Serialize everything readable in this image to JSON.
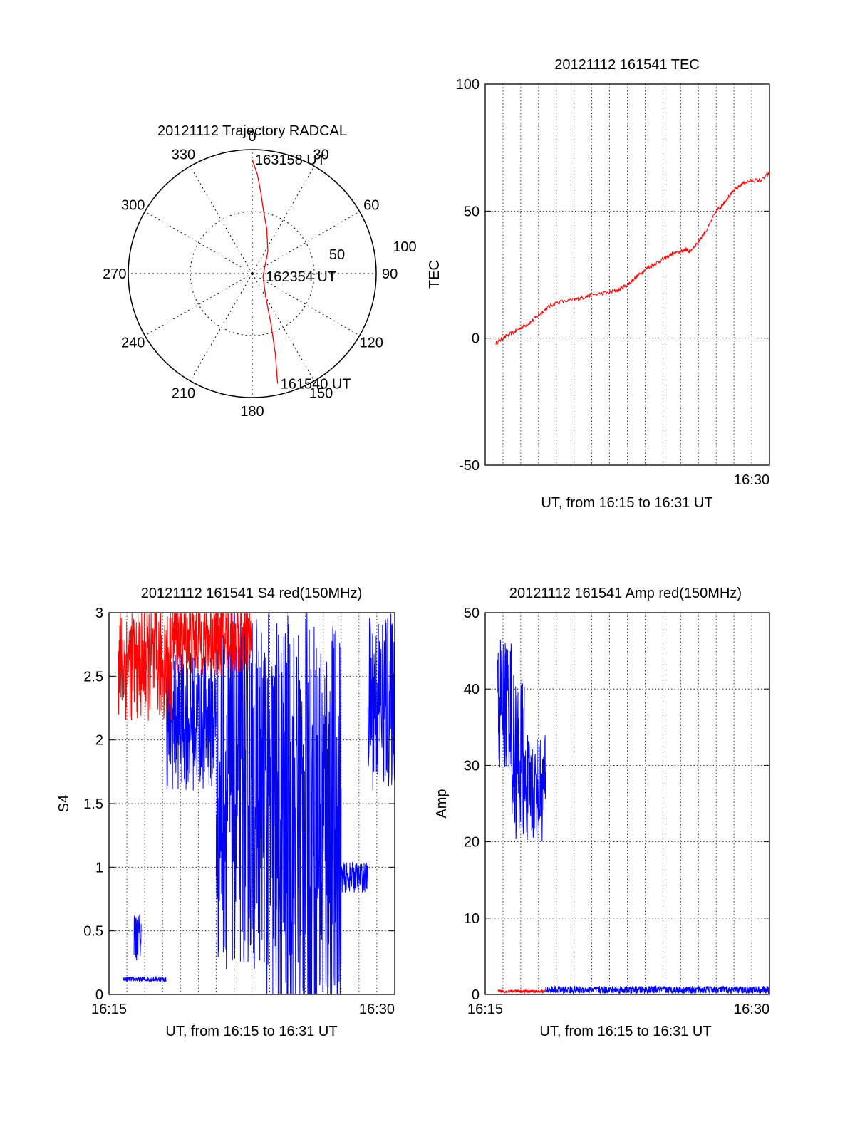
{
  "colors": {
    "red": "#ff0000",
    "blue": "#0000ff",
    "axis": "#000000"
  },
  "chart_data": [
    {
      "type": "polar",
      "title": "20121112 Trajectory RADCAL",
      "angle_labels": [
        "0",
        "30",
        "60",
        "90",
        "120",
        "150",
        "180",
        "210",
        "240",
        "270",
        "300",
        "330"
      ],
      "radius_max": 100,
      "radius_labels": [
        "50",
        "100"
      ],
      "annotations": [
        {
          "text": "163158 UT",
          "angle": 0,
          "radius": 92
        },
        {
          "text": "162354 UT",
          "angle": 105,
          "radius": 9
        },
        {
          "text": "161540 UT",
          "angle": 167,
          "radius": 91
        }
      ],
      "series": [
        {
          "color": "#ff0000",
          "points": [
            [
              0,
              92
            ],
            [
              3,
              80
            ],
            [
              6,
              66
            ],
            [
              10,
              52
            ],
            [
              18,
              38
            ],
            [
              35,
              22
            ],
            [
              105,
              9
            ],
            [
              150,
              22
            ],
            [
              160,
              45
            ],
            [
              164,
              68
            ],
            [
              167,
              91
            ]
          ]
        }
      ]
    },
    {
      "type": "line",
      "title": "20121112 161541 TEC",
      "xlabel": "UT, from 16:15 to 16:31 UT",
      "ylabel": "TEC",
      "xlim": [
        0,
        16
      ],
      "ylim": [
        -50,
        100
      ],
      "yticks": [
        -50,
        0,
        50,
        100
      ],
      "xticks": [
        {
          "value": 15,
          "label": "16:30"
        }
      ],
      "grid": true,
      "series": [
        {
          "color": "#ff0000",
          "x": [
            0.6,
            1.0,
            1.5,
            2.0,
            2.5,
            3.0,
            3.5,
            4.0,
            5.0,
            5.5,
            6.0,
            7.0,
            7.5,
            8.0,
            8.5,
            9.0,
            9.5,
            10.0,
            10.5,
            11.0,
            11.3,
            11.5,
            12.0,
            12.5,
            13.0,
            13.3,
            13.5,
            14.0,
            14.5,
            15.0,
            15.5,
            16.0
          ],
          "y": [
            -2,
            0,
            2,
            4,
            6,
            9,
            12,
            14,
            15,
            16,
            17,
            18,
            19,
            21,
            24,
            27,
            29,
            31,
            33,
            34,
            35,
            34,
            38,
            43,
            50,
            52,
            54,
            58,
            61,
            62,
            62,
            65
          ]
        }
      ]
    },
    {
      "type": "line",
      "title": "20121112 161541 S4 red(150MHz)",
      "xlabel": "UT, from 16:15 to 16:31 UT",
      "ylabel": "S4",
      "xlim": [
        0,
        16
      ],
      "ylim": [
        0,
        3
      ],
      "yticks": [
        0,
        0.5,
        1,
        1.5,
        2,
        2.5,
        3
      ],
      "ytick_labels": [
        "0",
        "0.5",
        "1",
        "1.5",
        "2",
        "2.5",
        "3"
      ],
      "xticks": [
        {
          "value": 0,
          "label": "16:15"
        },
        {
          "value": 15,
          "label": "16:30"
        }
      ],
      "grid": true,
      "series": [
        {
          "color": "#0000ff",
          "segments": [
            {
              "x": [
                0.8,
                3.2
              ],
              "base": 0.12,
              "noise": 0.02
            },
            {
              "x": [
                1.4,
                1.8
              ],
              "base": 0.45,
              "noise": 0.2
            },
            {
              "x": [
                3.2,
                6.0
              ],
              "base": 2.15,
              "noise": 0.55
            },
            {
              "x": [
                6.0,
                8.8
              ],
              "base": 1.6,
              "noise": 1.4
            },
            {
              "x": [
                8.8,
                13.0
              ],
              "base": 1.3,
              "noise": 1.7
            },
            {
              "x": [
                13.0,
                14.5
              ],
              "base": 0.92,
              "noise": 0.12
            },
            {
              "x": [
                14.5,
                16.0
              ],
              "base": 2.3,
              "noise": 0.7
            }
          ]
        },
        {
          "color": "#ff0000",
          "segments": [
            {
              "x": [
                0.5,
                3.5
              ],
              "base": 2.6,
              "noise": 0.45
            },
            {
              "x": [
                3.5,
                8.0
              ],
              "base": 2.8,
              "noise": 0.3
            }
          ]
        }
      ]
    },
    {
      "type": "line",
      "title": "20121112 161541 Amp red(150MHz)",
      "xlabel": "UT, from 16:15 to 16:31 UT",
      "ylabel": "Amp",
      "xlim": [
        0,
        16
      ],
      "ylim": [
        0,
        50
      ],
      "yticks": [
        0,
        10,
        20,
        30,
        40,
        50
      ],
      "xticks": [
        {
          "value": 0,
          "label": "16:15"
        },
        {
          "value": 15,
          "label": "16:30"
        }
      ],
      "grid": true,
      "series": [
        {
          "color": "#0000ff",
          "segments": [
            {
              "x": [
                0.7,
                1.5
              ],
              "base": 38,
              "noise": 9
            },
            {
              "x": [
                1.5,
                2.2
              ],
              "base": 31,
              "noise": 11
            },
            {
              "x": [
                2.2,
                3.4
              ],
              "base": 27,
              "noise": 7
            },
            {
              "x": [
                3.4,
                16.0
              ],
              "base": 0.6,
              "noise": 0.5
            }
          ]
        },
        {
          "color": "#ff0000",
          "segments": [
            {
              "x": [
                0.7,
                3.4
              ],
              "base": 0.4,
              "noise": 0.2
            }
          ]
        }
      ]
    }
  ]
}
